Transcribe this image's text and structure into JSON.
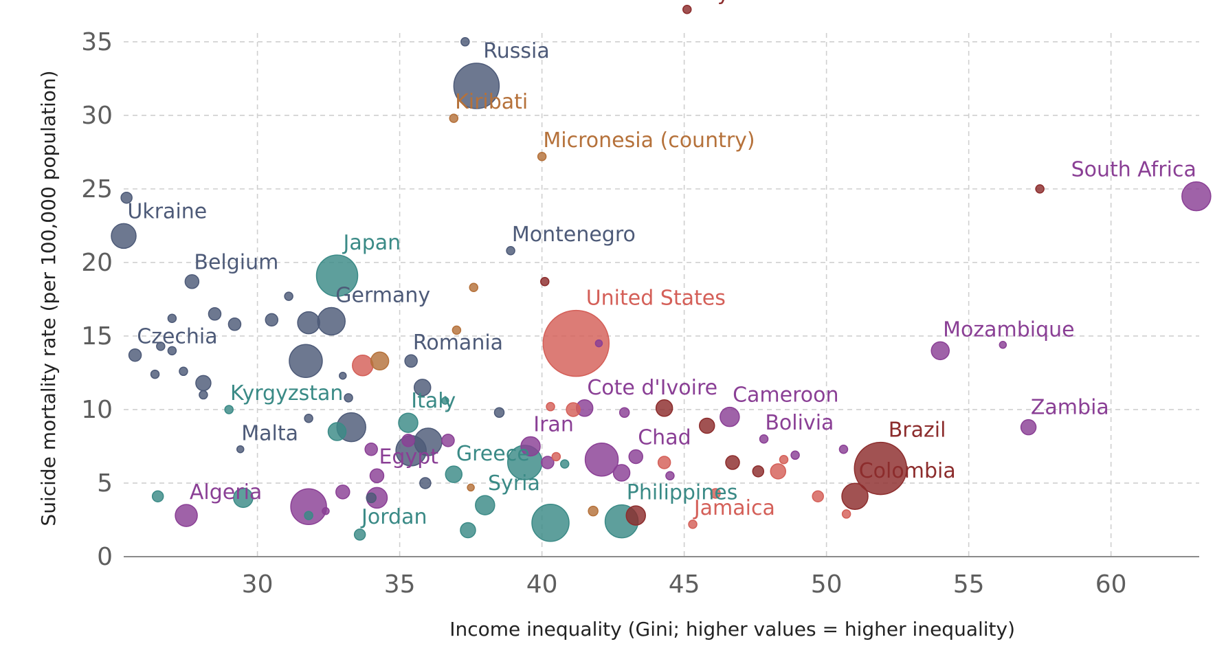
{
  "chart_data": {
    "type": "scatter",
    "xlabel": "Income inequality (Gini; higher values = higher inequality)",
    "ylabel": "Suicide mortality rate (per 100,000 population)",
    "xlim": [
      25.3,
      63.1
    ],
    "ylim": [
      0,
      37
    ],
    "x_ticks": [
      30,
      35,
      40,
      45,
      50,
      55,
      60
    ],
    "y_ticks": [
      0,
      5,
      10,
      15,
      20,
      25,
      30,
      35
    ],
    "x_tick_labels": [
      "30",
      "35",
      "40",
      "45",
      "50",
      "55",
      "60"
    ],
    "y_tick_labels": [
      "0",
      "5",
      "10",
      "15",
      "20",
      "25",
      "30",
      "35"
    ],
    "grid": true,
    "bubble_size": "population",
    "colors": {
      "europe": "#4d5a78",
      "asia": "#3a8a86",
      "africa": "#8a3f95",
      "north_america": "#d45f58",
      "south_america": "#8c2c2c",
      "oceania": "#b5713a"
    },
    "points": [
      {
        "label": "Russia",
        "x": 37.7,
        "y": 32.0,
        "r": 33,
        "color": "#4d5a78",
        "label_size": 36
      },
      {
        "label": "",
        "x": 37.3,
        "y": 35.0,
        "r": 6,
        "color": "#4d5a78"
      },
      {
        "label": "Guyana",
        "x": 45.1,
        "y": 37.2,
        "r": 6,
        "color": "#8c2c2c",
        "label_size": 28
      },
      {
        "label": "Kiribati",
        "x": 36.9,
        "y": 29.8,
        "r": 6,
        "color": "#b5713a",
        "label_size": 28
      },
      {
        "label": "Micronesia (country)",
        "x": 40.0,
        "y": 27.2,
        "r": 6,
        "color": "#b5713a",
        "label_size": 28
      },
      {
        "label": "South Africa",
        "x": 63.0,
        "y": 24.5,
        "r": 21,
        "color": "#8a3f95",
        "label_size": 30
      },
      {
        "label": "",
        "x": 57.5,
        "y": 25.0,
        "r": 6,
        "color": "#8c2c2c"
      },
      {
        "label": "",
        "x": 25.4,
        "y": 24.4,
        "r": 8,
        "color": "#4d5a78"
      },
      {
        "label": "Ukraine",
        "x": 25.3,
        "y": 21.8,
        "r": 18,
        "color": "#4d5a78",
        "label_size": 30
      },
      {
        "label": "Japan",
        "x": 32.8,
        "y": 19.1,
        "r": 30,
        "color": "#3a8a86",
        "label_size": 32
      },
      {
        "label": "Montenegro",
        "x": 38.9,
        "y": 20.8,
        "r": 6,
        "color": "#4d5a78",
        "label_size": 28
      },
      {
        "label": "Belgium",
        "x": 27.7,
        "y": 18.7,
        "r": 10,
        "color": "#4d5a78",
        "label_size": 28
      },
      {
        "label": "",
        "x": 31.1,
        "y": 17.7,
        "r": 6,
        "color": "#4d5a78"
      },
      {
        "label": "",
        "x": 37.6,
        "y": 18.3,
        "r": 6,
        "color": "#b5713a"
      },
      {
        "label": "",
        "x": 40.1,
        "y": 18.7,
        "r": 6,
        "color": "#8c2c2c"
      },
      {
        "label": "United States",
        "x": 41.2,
        "y": 14.5,
        "r": 48,
        "color": "#d45f58",
        "label_size": 36
      },
      {
        "label": "",
        "x": 27.0,
        "y": 16.2,
        "r": 6,
        "color": "#4d5a78"
      },
      {
        "label": "",
        "x": 28.5,
        "y": 16.5,
        "r": 9,
        "color": "#4d5a78"
      },
      {
        "label": "",
        "x": 29.2,
        "y": 15.8,
        "r": 9,
        "color": "#4d5a78"
      },
      {
        "label": "",
        "x": 30.5,
        "y": 16.1,
        "r": 9,
        "color": "#4d5a78"
      },
      {
        "label": "",
        "x": 31.8,
        "y": 15.9,
        "r": 16,
        "color": "#4d5a78"
      },
      {
        "label": "Germany",
        "x": 32.6,
        "y": 16.0,
        "r": 20,
        "color": "#4d5a78",
        "label_size": 30
      },
      {
        "label": "",
        "x": 37.0,
        "y": 15.4,
        "r": 6,
        "color": "#b5713a"
      },
      {
        "label": "Czechia",
        "x": 25.7,
        "y": 13.7,
        "r": 9,
        "color": "#4d5a78",
        "label_size": 28
      },
      {
        "label": "",
        "x": 26.6,
        "y": 14.3,
        "r": 6,
        "color": "#4d5a78"
      },
      {
        "label": "",
        "x": 27.0,
        "y": 14.0,
        "r": 6,
        "color": "#4d5a78"
      },
      {
        "label": "",
        "x": 31.7,
        "y": 13.3,
        "r": 24,
        "color": "#4d5a78"
      },
      {
        "label": "",
        "x": 33.7,
        "y": 13.0,
        "r": 15,
        "color": "#d45f58"
      },
      {
        "label": "",
        "x": 34.3,
        "y": 13.3,
        "r": 13,
        "color": "#b5713a"
      },
      {
        "label": "Romania",
        "x": 35.4,
        "y": 13.3,
        "r": 9,
        "color": "#4d5a78",
        "label_size": 28
      },
      {
        "label": "",
        "x": 35.8,
        "y": 11.5,
        "r": 12,
        "color": "#4d5a78"
      },
      {
        "label": "",
        "x": 26.4,
        "y": 12.4,
        "r": 6,
        "color": "#4d5a78"
      },
      {
        "label": "",
        "x": 27.4,
        "y": 12.6,
        "r": 6,
        "color": "#4d5a78"
      },
      {
        "label": "",
        "x": 28.1,
        "y": 11.8,
        "r": 11,
        "color": "#4d5a78"
      },
      {
        "label": "",
        "x": 28.1,
        "y": 11.0,
        "r": 6,
        "color": "#4d5a78"
      },
      {
        "label": "",
        "x": 33.0,
        "y": 12.3,
        "r": 5,
        "color": "#4d5a78"
      },
      {
        "label": "",
        "x": 42.0,
        "y": 14.5,
        "r": 5,
        "color": "#8a3f95"
      },
      {
        "label": "Mozambique",
        "x": 54.0,
        "y": 14.0,
        "r": 13,
        "color": "#8a3f95",
        "label_size": 28
      },
      {
        "label": "",
        "x": 56.2,
        "y": 14.4,
        "r": 5,
        "color": "#8a3f95"
      },
      {
        "label": "Kyrgyzstan",
        "x": 29.0,
        "y": 10.0,
        "r": 6,
        "color": "#3a8a86",
        "label_size": 28
      },
      {
        "label": "",
        "x": 33.2,
        "y": 10.8,
        "r": 6,
        "color": "#4d5a78"
      },
      {
        "label": "",
        "x": 36.6,
        "y": 10.6,
        "r": 5,
        "color": "#3a8a86"
      },
      {
        "label": "",
        "x": 31.8,
        "y": 9.4,
        "r": 6,
        "color": "#4d5a78"
      },
      {
        "label": "",
        "x": 33.3,
        "y": 8.8,
        "r": 21,
        "color": "#4d5a78"
      },
      {
        "label": "",
        "x": 32.8,
        "y": 8.5,
        "r": 13,
        "color": "#3a8a86"
      },
      {
        "label": "",
        "x": 38.5,
        "y": 9.8,
        "r": 7,
        "color": "#4d5a78"
      },
      {
        "label": "",
        "x": 40.3,
        "y": 10.2,
        "r": 6,
        "color": "#d45f58"
      },
      {
        "label": "",
        "x": 41.1,
        "y": 10.0,
        "r": 10,
        "color": "#d45f58"
      },
      {
        "label": "Cote d'Ivoire",
        "x": 41.5,
        "y": 10.1,
        "r": 12,
        "color": "#8a3f95",
        "label_size": 28
      },
      {
        "label": "",
        "x": 42.9,
        "y": 9.8,
        "r": 7,
        "color": "#8a3f95"
      },
      {
        "label": "",
        "x": 44.3,
        "y": 10.1,
        "r": 12,
        "color": "#8c2c2c"
      },
      {
        "label": "Cameroon",
        "x": 46.6,
        "y": 9.5,
        "r": 14,
        "color": "#8a3f95",
        "label_size": 28
      },
      {
        "label": "",
        "x": 45.8,
        "y": 8.9,
        "r": 11,
        "color": "#8c2c2c"
      },
      {
        "label": "Zambia",
        "x": 57.1,
        "y": 8.8,
        "r": 11,
        "color": "#8a3f95",
        "label_size": 28
      },
      {
        "label": "Brazil",
        "x": 51.9,
        "y": 6.0,
        "r": 38,
        "color": "#8c2c2c",
        "label_size": 32
      },
      {
        "label": "Colombia",
        "x": 51.0,
        "y": 4.1,
        "r": 19,
        "color": "#8c2c2c",
        "label_size": 28
      },
      {
        "label": "Malta",
        "x": 29.4,
        "y": 7.3,
        "r": 5,
        "color": "#4d5a78",
        "label_size": 28
      },
      {
        "label": "Italy",
        "x": 35.3,
        "y": 9.1,
        "r": 14,
        "color": "#3a8a86",
        "label_size": 30
      },
      {
        "label": "",
        "x": 35.4,
        "y": 7.2,
        "r": 22,
        "color": "#4d5a78"
      },
      {
        "label": "",
        "x": 36.0,
        "y": 7.8,
        "r": 20,
        "color": "#4d5a78"
      },
      {
        "label": "",
        "x": 35.3,
        "y": 7.9,
        "r": 9,
        "color": "#8a3f95"
      },
      {
        "label": "",
        "x": 36.7,
        "y": 7.9,
        "r": 9,
        "color": "#8a3f95"
      },
      {
        "label": "",
        "x": 34.0,
        "y": 7.3,
        "r": 9,
        "color": "#8a3f95"
      },
      {
        "label": "Iran",
        "x": 39.6,
        "y": 7.5,
        "r": 14,
        "color": "#8a3f95",
        "label_size": 30
      },
      {
        "label": "",
        "x": 39.4,
        "y": 6.4,
        "r": 25,
        "color": "#3a8a86"
      },
      {
        "label": "",
        "x": 40.5,
        "y": 6.8,
        "r": 6,
        "color": "#d45f58"
      },
      {
        "label": "",
        "x": 40.2,
        "y": 6.4,
        "r": 9,
        "color": "#8a3f95"
      },
      {
        "label": "",
        "x": 40.8,
        "y": 6.3,
        "r": 6,
        "color": "#3a8a86"
      },
      {
        "label": "Chad",
        "x": 43.3,
        "y": 6.8,
        "r": 10,
        "color": "#8a3f95",
        "label_size": 28
      },
      {
        "label": "",
        "x": 42.1,
        "y": 6.6,
        "r": 24,
        "color": "#8a3f95"
      },
      {
        "label": "",
        "x": 42.8,
        "y": 5.7,
        "r": 12,
        "color": "#8a3f95"
      },
      {
        "label": "",
        "x": 44.3,
        "y": 6.4,
        "r": 9,
        "color": "#d45f58"
      },
      {
        "label": "",
        "x": 44.5,
        "y": 5.5,
        "r": 6,
        "color": "#8a3f95"
      },
      {
        "label": "Bolivia",
        "x": 47.8,
        "y": 8.0,
        "r": 6,
        "color": "#8a3f95",
        "label_size": 28
      },
      {
        "label": "",
        "x": 46.7,
        "y": 6.4,
        "r": 10,
        "color": "#8c2c2c"
      },
      {
        "label": "",
        "x": 47.6,
        "y": 5.8,
        "r": 8,
        "color": "#8c2c2c"
      },
      {
        "label": "",
        "x": 48.3,
        "y": 5.8,
        "r": 11,
        "color": "#d45f58"
      },
      {
        "label": "",
        "x": 48.5,
        "y": 6.6,
        "r": 6,
        "color": "#d45f58"
      },
      {
        "label": "",
        "x": 48.9,
        "y": 6.9,
        "r": 6,
        "color": "#8a3f95"
      },
      {
        "label": "",
        "x": 50.6,
        "y": 7.3,
        "r": 6,
        "color": "#8a3f95"
      },
      {
        "label": "Greece",
        "x": 36.9,
        "y": 5.6,
        "r": 12,
        "color": "#3a8a86",
        "label_size": 28
      },
      {
        "label": "",
        "x": 35.9,
        "y": 5.0,
        "r": 8,
        "color": "#4d5a78"
      },
      {
        "label": "Egypt",
        "x": 34.2,
        "y": 5.5,
        "r": 10,
        "color": "#8a3f95",
        "label_size": 30
      },
      {
        "label": "",
        "x": 33.0,
        "y": 4.4,
        "r": 10,
        "color": "#8a3f95"
      },
      {
        "label": "",
        "x": 32.4,
        "y": 3.1,
        "r": 5,
        "color": "#8a3f95"
      },
      {
        "label": "",
        "x": 34.2,
        "y": 4.0,
        "r": 15,
        "color": "#8a3f95"
      },
      {
        "label": "",
        "x": 34.0,
        "y": 4.0,
        "r": 7,
        "color": "#4d5a78"
      },
      {
        "label": "",
        "x": 37.5,
        "y": 4.7,
        "r": 5,
        "color": "#b5713a"
      },
      {
        "label": "Algeria",
        "x": 27.5,
        "y": 2.8,
        "r": 16,
        "color": "#8a3f95",
        "label_size": 28
      },
      {
        "label": "",
        "x": 26.5,
        "y": 4.1,
        "r": 8,
        "color": "#3a8a86"
      },
      {
        "label": "",
        "x": 29.5,
        "y": 4.0,
        "r": 14,
        "color": "#3a8a86"
      },
      {
        "label": "",
        "x": 31.8,
        "y": 3.4,
        "r": 26,
        "color": "#8a3f95"
      },
      {
        "label": "",
        "x": 31.8,
        "y": 2.8,
        "r": 6,
        "color": "#3a8a86"
      },
      {
        "label": "Jordan",
        "x": 33.6,
        "y": 1.5,
        "r": 8,
        "color": "#3a8a86",
        "label_size": 28
      },
      {
        "label": "Syria",
        "x": 38.0,
        "y": 3.5,
        "r": 14,
        "color": "#3a8a86",
        "label_size": 28
      },
      {
        "label": "",
        "x": 37.4,
        "y": 1.8,
        "r": 11,
        "color": "#3a8a86"
      },
      {
        "label": "",
        "x": 40.3,
        "y": 2.3,
        "r": 27,
        "color": "#3a8a86"
      },
      {
        "label": "Philippines",
        "x": 42.8,
        "y": 2.4,
        "r": 24,
        "color": "#3a8a86",
        "label_size": 30
      },
      {
        "label": "",
        "x": 43.3,
        "y": 2.8,
        "r": 14,
        "color": "#8c2c2c"
      },
      {
        "label": "",
        "x": 41.8,
        "y": 3.1,
        "r": 7,
        "color": "#b5713a"
      },
      {
        "label": "Jamaica",
        "x": 45.3,
        "y": 2.2,
        "r": 6,
        "color": "#d45f58",
        "label_size": 28
      },
      {
        "label": "",
        "x": 46.1,
        "y": 4.3,
        "r": 7,
        "color": "#d45f58"
      },
      {
        "label": "",
        "x": 49.7,
        "y": 4.1,
        "r": 8,
        "color": "#d45f58"
      },
      {
        "label": "",
        "x": 50.7,
        "y": 2.9,
        "r": 6,
        "color": "#d45f58"
      }
    ]
  }
}
